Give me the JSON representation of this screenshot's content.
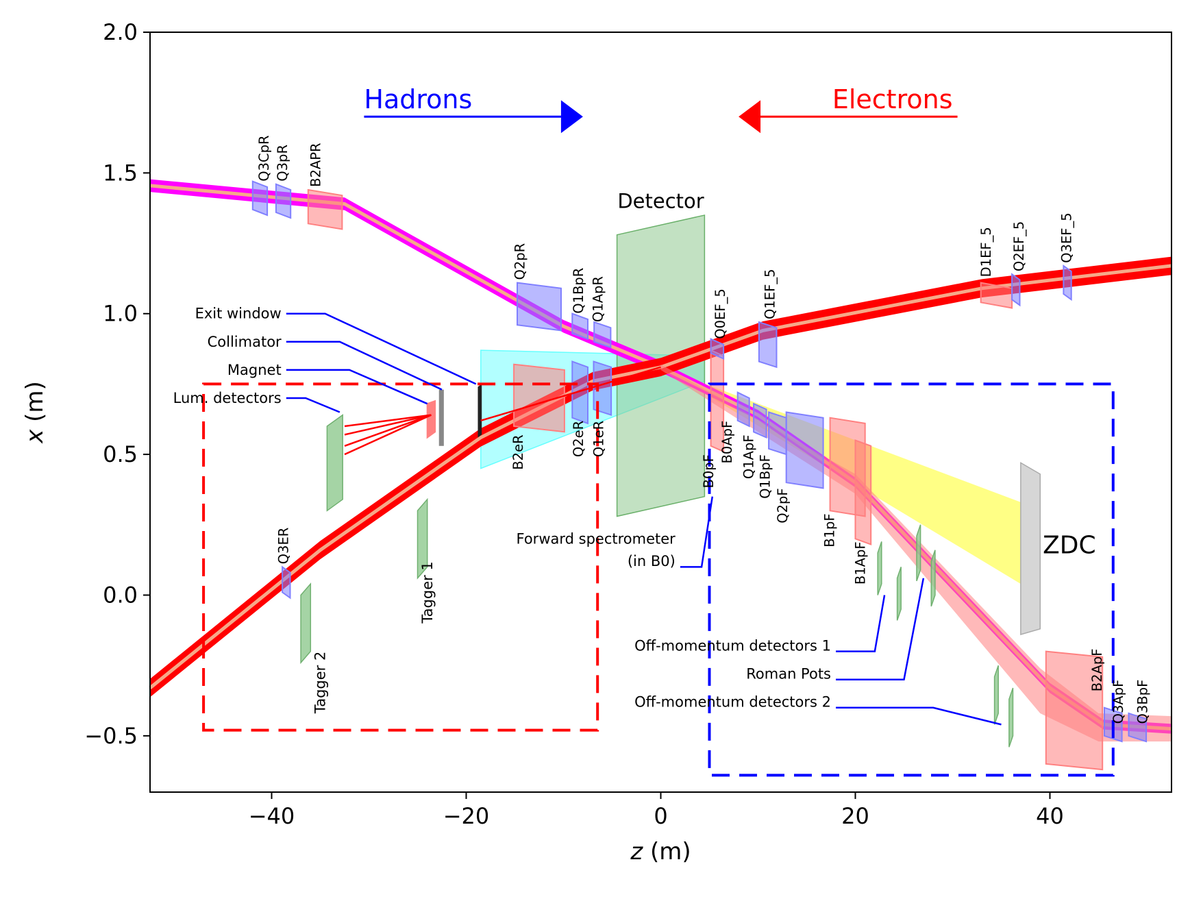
{
  "chart_data": {
    "type": "schematic",
    "xlabel": "z (m)",
    "ylabel": "x (m)",
    "xlim": [
      -52.5,
      52.5
    ],
    "ylim": [
      -0.7,
      2.0
    ],
    "xticks": [
      -40,
      -20,
      0,
      20,
      40
    ],
    "xtick_labels": [
      "−40",
      "−20",
      "0",
      "20",
      "40"
    ],
    "yticks": [
      -0.5,
      0.0,
      0.5,
      1.0,
      1.5,
      2.0
    ],
    "ytick_labels": [
      "−0.5",
      "0.0",
      "0.5",
      "1.0",
      "1.5",
      "2.0"
    ],
    "colors": {
      "hadron": "#ff00ff",
      "electron": "#ff0000",
      "core": "#f6a989",
      "magnet_blue": "#8080ff",
      "magnet_red": "#ff8080",
      "green": "#8fc98f",
      "cyan": "#66ffff",
      "yellow": "#ffff33",
      "grey": "#c8c8c8"
    },
    "arrows": [
      {
        "name": "hadrons",
        "label": "Hadrons",
        "color": "#0000ff",
        "from": [
          -30.5,
          1.7
        ],
        "to": [
          -8,
          1.7
        ],
        "label_z": -30.5
      },
      {
        "name": "electrons",
        "label": "Electrons",
        "color": "#ff0000",
        "from": [
          30.5,
          1.7
        ],
        "to": [
          8,
          1.7
        ],
        "label_z": 30.0
      }
    ],
    "beams": [
      {
        "name": "hadron-beam-in",
        "color": "#ff00ff",
        "width": 0.045,
        "points": [
          [
            -52.5,
            1.455
          ],
          [
            -32.5,
            1.39
          ],
          [
            -10,
            0.955
          ],
          [
            0,
            0.81
          ]
        ]
      },
      {
        "name": "hadron-beam-out",
        "color": "#ff00ff",
        "width": 0.035,
        "points": [
          [
            0,
            0.81
          ],
          [
            10,
            0.64
          ],
          [
            20,
            0.4
          ],
          [
            40,
            -0.33
          ],
          [
            45.5,
            -0.46
          ],
          [
            52.5,
            -0.475
          ]
        ]
      },
      {
        "name": "electron-beam-in",
        "color": "#ff0000",
        "width": 0.065,
        "points": [
          [
            -52.5,
            -0.33
          ],
          [
            -35,
            0.16
          ],
          [
            -18.5,
            0.56
          ],
          [
            -7,
            0.76
          ],
          [
            0,
            0.81
          ]
        ]
      },
      {
        "name": "electron-beam-out",
        "color": "#ff0000",
        "width": 0.065,
        "points": [
          [
            0,
            0.81
          ],
          [
            10.5,
            0.94
          ],
          [
            33,
            1.09
          ],
          [
            52.5,
            1.17
          ]
        ]
      }
    ],
    "magnets": [
      {
        "name": "Q3CpR",
        "label": "Q3CpR",
        "color": "blue",
        "z": -41.2,
        "w": 1.5,
        "y0": 1.37,
        "y1": 1.47
      },
      {
        "name": "Q3pR",
        "label": "Q3pR",
        "color": "blue",
        "z": -38.8,
        "w": 1.5,
        "y0": 1.36,
        "y1": 1.46
      },
      {
        "name": "B2APR",
        "label": "B2APR",
        "color": "red",
        "z": -34.5,
        "w": 3.5,
        "y0": 1.32,
        "y1": 1.44
      },
      {
        "name": "Q2pR",
        "label": "Q2pR",
        "color": "blue",
        "z": -12.5,
        "w": 4.5,
        "y0": 0.96,
        "y1": 1.11
      },
      {
        "name": "Q1BpR",
        "label": "Q1BpR",
        "color": "blue",
        "z": -8.3,
        "w": 1.6,
        "y0": 0.93,
        "y1": 1.0
      },
      {
        "name": "Q1ApR",
        "label": "Q1ApR",
        "color": "blue",
        "z": -6.0,
        "w": 1.7,
        "y0": 0.9,
        "y1": 0.97
      },
      {
        "name": "B2eR",
        "label": "B2eR",
        "color": "red",
        "z": -12.5,
        "w": 5.2,
        "y0": 0.6,
        "y1": 0.82
      },
      {
        "name": "Q2eR",
        "label": "Q2eR",
        "color": "blue",
        "z": -8.3,
        "w": 1.6,
        "y0": 0.63,
        "y1": 0.83
      },
      {
        "name": "Q1eR",
        "label": "Q1eR",
        "color": "blue",
        "z": -6.0,
        "w": 1.8,
        "y0": 0.66,
        "y1": 0.83
      },
      {
        "name": "Q3ER",
        "label": "Q3ER",
        "color": "blue",
        "z": -38.5,
        "w": 0.8,
        "y0": 0.01,
        "y1": 0.1
      },
      {
        "name": "B0pF",
        "label": "B0pF",
        "color": "red",
        "z": 5.8,
        "w": 1.3,
        "y0": 0.53,
        "y1": 0.87
      },
      {
        "name": "Q0EF_5",
        "label": "Q0EF_5",
        "color": "blue",
        "z": 5.8,
        "w": 1.3,
        "y0": 0.86,
        "y1": 0.91
      },
      {
        "name": "Q1EF_5",
        "label": "Q1EF_5",
        "color": "blue",
        "z": 11.0,
        "w": 1.8,
        "y0": 0.83,
        "y1": 0.97
      },
      {
        "name": "B0ApF",
        "label": "B0ApF",
        "color": "blue",
        "z": 8.5,
        "w": 1.2,
        "y0": 0.62,
        "y1": 0.72
      },
      {
        "name": "Q1ApF",
        "label": "Q1ApF",
        "color": "blue",
        "z": 10.2,
        "w": 1.3,
        "y0": 0.58,
        "y1": 0.68
      },
      {
        "name": "Q1BpF",
        "label": "Q1BpF",
        "color": "blue",
        "z": 12.0,
        "w": 1.8,
        "y0": 0.52,
        "y1": 0.65
      },
      {
        "name": "Q2pF",
        "label": "Q2pF",
        "color": "blue",
        "z": 14.8,
        "w": 3.8,
        "y0": 0.4,
        "y1": 0.65
      },
      {
        "name": "B1pF",
        "label": "B1pF",
        "color": "red",
        "z": 19.2,
        "w": 3.6,
        "y0": 0.3,
        "y1": 0.63
      },
      {
        "name": "B1ApF",
        "label": "B1ApF",
        "color": "red",
        "z": 20.8,
        "w": 1.6,
        "y0": 0.2,
        "y1": 0.55
      },
      {
        "name": "B2ApF",
        "label": "B2ApF",
        "color": "red",
        "z": 42.5,
        "w": 5.8,
        "y0": -0.6,
        "y1": -0.2
      },
      {
        "name": "Q3ApF",
        "label": "Q3ApF",
        "color": "blue",
        "z": 46.5,
        "w": 1.8,
        "y0": -0.5,
        "y1": -0.4
      },
      {
        "name": "Q3BpF",
        "label": "Q3BpF",
        "color": "blue",
        "z": 49.0,
        "w": 1.8,
        "y0": -0.5,
        "y1": -0.42
      },
      {
        "name": "D1EF_5",
        "label": "D1EF_5",
        "color": "red",
        "z": 34.5,
        "w": 3.2,
        "y0": 1.04,
        "y1": 1.11
      },
      {
        "name": "Q2EF_5",
        "label": "Q2EF_5",
        "color": "blue",
        "z": 36.5,
        "w": 0.8,
        "y0": 1.05,
        "y1": 1.14
      },
      {
        "name": "Q3EF_5",
        "label": "Q3EF_5",
        "color": "blue",
        "z": 41.8,
        "w": 0.8,
        "y0": 1.07,
        "y1": 1.17
      }
    ],
    "magnet_labels": [
      {
        "text": "Q3CpR",
        "z": -40.3,
        "x": 1.47
      },
      {
        "text": "Q3pR",
        "z": -38.4,
        "x": 1.47
      },
      {
        "text": "B2APR",
        "z": -35.0,
        "x": 1.45
      },
      {
        "text": "Q2pR",
        "z": -14.0,
        "x": 1.12
      },
      {
        "text": "Q1BpR",
        "z": -8.0,
        "x": 1.0
      },
      {
        "text": "Q1ApR",
        "z": -6.0,
        "x": 0.97
      },
      {
        "text": "B2eR",
        "z": -14.2,
        "x": 0.57,
        "anchor": "end"
      },
      {
        "text": "Q2eR",
        "z": -8.0,
        "x": 0.62,
        "anchor": "end"
      },
      {
        "text": "Q1eR",
        "z": -5.9,
        "x": 0.62,
        "anchor": "end"
      },
      {
        "text": "Q3ER",
        "z": -38.3,
        "x": 0.11
      },
      {
        "text": "B0pF",
        "z": 5.4,
        "x": 0.5,
        "anchor": "end"
      },
      {
        "text": "B0ApF",
        "z": 7.3,
        "x": 0.62,
        "anchor": "end"
      },
      {
        "text": "Q1ApF",
        "z": 9.5,
        "x": 0.57,
        "anchor": "end"
      },
      {
        "text": "Q1BpF",
        "z": 11.2,
        "x": 0.5,
        "anchor": "end"
      },
      {
        "text": "Q2pF",
        "z": 13.0,
        "x": 0.38,
        "anchor": "end"
      },
      {
        "text": "B1pF",
        "z": 17.8,
        "x": 0.29,
        "anchor": "end"
      },
      {
        "text": "B1ApF",
        "z": 21.0,
        "x": 0.19,
        "anchor": "end"
      },
      {
        "text": "B2ApF",
        "z": 45.3,
        "x": -0.19,
        "anchor": "end"
      },
      {
        "text": "Q3ApF",
        "z": 47.5,
        "x": -0.3,
        "anchor": "end"
      },
      {
        "text": "Q3BpF",
        "z": 50.0,
        "x": -0.3,
        "anchor": "end"
      },
      {
        "text": "Q0EF_5",
        "z": 6.6,
        "x": 0.91
      },
      {
        "text": "Q1EF_5",
        "z": 11.7,
        "x": 0.98
      },
      {
        "text": "D1EF_5",
        "z": 33.9,
        "x": 1.13
      },
      {
        "text": "Q2EF_5",
        "z": 37.3,
        "x": 1.15
      },
      {
        "text": "Q3EF_5",
        "z": 42.2,
        "x": 1.18
      }
    ],
    "detector": {
      "label": "Detector",
      "z0": -4.5,
      "z1": 4.5,
      "y0_left": 0.28,
      "y1_left": 1.28,
      "y0_right": 0.35,
      "y1_right": 1.35
    },
    "zdc": {
      "label": "ZDC",
      "z0": 37.0,
      "z1": 39.0,
      "y0": -0.14,
      "y1": 0.47
    },
    "annotations": [
      {
        "text": "Exit window",
        "side": "left",
        "label_z": -39.0,
        "label_x": 1.0
      },
      {
        "text": "Collimator",
        "side": "left",
        "label_z": -39.0,
        "label_x": 0.9
      },
      {
        "text": "Magnet",
        "side": "left",
        "label_z": -39.0,
        "label_x": 0.8
      },
      {
        "text": "Lum. detectors",
        "side": "left",
        "label_z": -39.0,
        "label_x": 0.7
      },
      {
        "text": "Forward spectrometer",
        "side": "left",
        "label_z": 1.5,
        "label_x": 0.2
      },
      {
        "text": "(in B0)",
        "side": "left",
        "label_z": 1.5,
        "label_x": 0.12
      },
      {
        "text": "Off-momentum detectors 1",
        "side": "left",
        "label_z": 17.5,
        "label_x": -0.18
      },
      {
        "text": "Roman Pots",
        "side": "left",
        "label_z": 17.5,
        "label_x": -0.28
      },
      {
        "text": "Off-momentum detectors 2",
        "side": "left",
        "label_z": 17.5,
        "label_x": -0.38
      }
    ],
    "tagger_labels": [
      {
        "text": "Tagger 1",
        "z": -23.5,
        "x": 0.12
      },
      {
        "text": "Tagger 2",
        "z": -34.5,
        "x": -0.2
      }
    ],
    "boxes": [
      {
        "name": "electron-region-box",
        "color": "#ff0000",
        "z0": -47.0,
        "z1": -6.5,
        "y0": -0.48,
        "y1": 0.75
      },
      {
        "name": "hadron-region-box",
        "color": "#0000ff",
        "z0": 5.0,
        "z1": 46.5,
        "y0": -0.64,
        "y1": 0.75
      }
    ]
  }
}
